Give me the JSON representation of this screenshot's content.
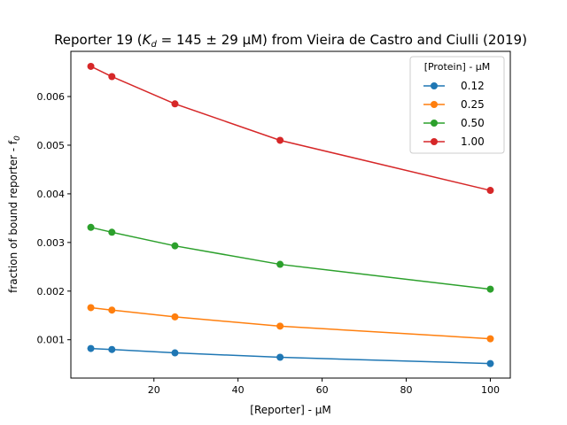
{
  "chart_data": {
    "type": "line",
    "title": {
      "prefix": "Reporter 19 (",
      "kd_symbol": "K",
      "kd_sub": "d",
      "kd_value": " = 145 ± 29 μM)",
      "suffix": " from Vieira de Castro and Ciulli (2019)"
    },
    "xlabel": "[Reporter] - μM",
    "ylabel": "fraction of bound reporter - f",
    "ylabel_sub": "0",
    "xlim": [
      0.25,
      104.75
    ],
    "ylim": [
      0.000212,
      0.006929
    ],
    "xticks": [
      20,
      40,
      60,
      80,
      100
    ],
    "xtick_labels": [
      "20",
      "40",
      "60",
      "80",
      "100"
    ],
    "yticks": [
      0.001,
      0.002,
      0.003,
      0.004,
      0.005,
      0.006
    ],
    "ytick_labels": [
      "0.001",
      "0.002",
      "0.003",
      "0.004",
      "0.005",
      "0.006"
    ],
    "x": [
      5,
      10,
      25,
      50,
      100
    ],
    "grid": false,
    "legend": {
      "title": "[Protein] - μM",
      "placement": "top-right"
    },
    "series": [
      {
        "name": "0.12",
        "color": "#1f77b4",
        "values": [
          0.00082,
          0.0008,
          0.00073,
          0.00064,
          0.00051
        ]
      },
      {
        "name": "0.25",
        "color": "#ff7f0e",
        "values": [
          0.00166,
          0.00161,
          0.00147,
          0.00128,
          0.00102
        ]
      },
      {
        "name": "0.50",
        "color": "#2ca02c",
        "values": [
          0.00331,
          0.00321,
          0.00293,
          0.00255,
          0.00204
        ]
      },
      {
        "name": "1.00",
        "color": "#d62728",
        "values": [
          0.00662,
          0.00641,
          0.00585,
          0.0051,
          0.00407
        ]
      }
    ]
  }
}
